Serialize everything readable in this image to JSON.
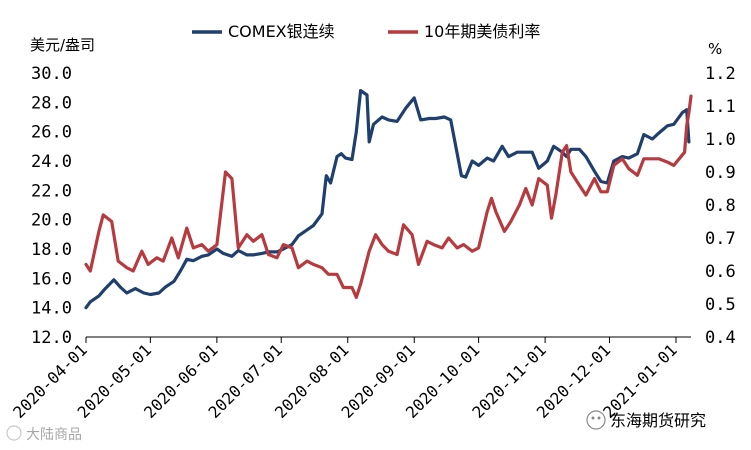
{
  "chart_data": {
    "type": "line",
    "left_axis_unit": "美元/盎司",
    "right_axis_unit": "%",
    "left_axis": {
      "range": [
        12.0,
        30.0
      ],
      "ticks": [
        "12.0",
        "14.0",
        "16.0",
        "18.0",
        "20.0",
        "22.0",
        "24.0",
        "26.0",
        "28.0",
        "30.0"
      ]
    },
    "right_axis": {
      "range": [
        0.4,
        1.2
      ],
      "ticks": [
        "0.4",
        "0.5",
        "0.6",
        "0.7",
        "0.8",
        "0.9",
        "1.0",
        "1.1",
        "1.2"
      ]
    },
    "x_axis": {
      "range": [
        "2020-04-01",
        "2021-01-08"
      ],
      "tick_labels": [
        "2020-04-01",
        "2020-05-01",
        "2020-06-01",
        "2020-07-01",
        "2020-08-01",
        "2020-09-01",
        "2020-10-01",
        "2020-11-01",
        "2020-12-01",
        "2021-01-01"
      ]
    },
    "grid": false,
    "legend_position": "top-center",
    "series": [
      {
        "name": "COMEX银连续",
        "axis": "left",
        "color": "#1f3f6e",
        "points": [
          [
            "2020-04-01",
            14.0
          ],
          [
            "2020-04-03",
            14.4
          ],
          [
            "2020-04-07",
            14.8
          ],
          [
            "2020-04-10",
            15.3
          ],
          [
            "2020-04-14",
            15.9
          ],
          [
            "2020-04-17",
            15.4
          ],
          [
            "2020-04-20",
            15.0
          ],
          [
            "2020-04-24",
            15.3
          ],
          [
            "2020-04-28",
            15.0
          ],
          [
            "2020-05-01",
            14.9
          ],
          [
            "2020-05-05",
            15.0
          ],
          [
            "2020-05-08",
            15.4
          ],
          [
            "2020-05-12",
            15.8
          ],
          [
            "2020-05-15",
            16.5
          ],
          [
            "2020-05-18",
            17.3
          ],
          [
            "2020-05-21",
            17.2
          ],
          [
            "2020-05-25",
            17.5
          ],
          [
            "2020-05-28",
            17.6
          ],
          [
            "2020-06-01",
            18.0
          ],
          [
            "2020-06-04",
            17.7
          ],
          [
            "2020-06-08",
            17.5
          ],
          [
            "2020-06-11",
            17.9
          ],
          [
            "2020-06-15",
            17.6
          ],
          [
            "2020-06-18",
            17.6
          ],
          [
            "2020-06-22",
            17.7
          ],
          [
            "2020-06-25",
            17.8
          ],
          [
            "2020-06-29",
            17.8
          ],
          [
            "2020-07-02",
            18.0
          ],
          [
            "2020-07-06",
            18.3
          ],
          [
            "2020-07-09",
            18.9
          ],
          [
            "2020-07-13",
            19.3
          ],
          [
            "2020-07-16",
            19.6
          ],
          [
            "2020-07-20",
            20.4
          ],
          [
            "2020-07-22",
            23.0
          ],
          [
            "2020-07-24",
            22.5
          ],
          [
            "2020-07-27",
            24.3
          ],
          [
            "2020-07-29",
            24.5
          ],
          [
            "2020-07-31",
            24.2
          ],
          [
            "2020-08-03",
            24.1
          ],
          [
            "2020-08-05",
            26.0
          ],
          [
            "2020-08-07",
            28.8
          ],
          [
            "2020-08-10",
            28.5
          ],
          [
            "2020-08-11",
            25.3
          ],
          [
            "2020-08-13",
            26.5
          ],
          [
            "2020-08-17",
            27.0
          ],
          [
            "2020-08-20",
            26.8
          ],
          [
            "2020-08-24",
            26.7
          ],
          [
            "2020-08-28",
            27.6
          ],
          [
            "2020-09-01",
            28.3
          ],
          [
            "2020-09-04",
            26.8
          ],
          [
            "2020-09-08",
            26.9
          ],
          [
            "2020-09-11",
            26.9
          ],
          [
            "2020-09-15",
            27.0
          ],
          [
            "2020-09-18",
            26.8
          ],
          [
            "2020-09-21",
            24.5
          ],
          [
            "2020-09-23",
            23.0
          ],
          [
            "2020-09-25",
            22.9
          ],
          [
            "2020-09-28",
            24.0
          ],
          [
            "2020-10-01",
            23.7
          ],
          [
            "2020-10-05",
            24.2
          ],
          [
            "2020-10-08",
            24.0
          ],
          [
            "2020-10-12",
            25.0
          ],
          [
            "2020-10-15",
            24.3
          ],
          [
            "2020-10-19",
            24.6
          ],
          [
            "2020-10-22",
            24.6
          ],
          [
            "2020-10-26",
            24.6
          ],
          [
            "2020-10-29",
            23.5
          ],
          [
            "2020-11-02",
            24.0
          ],
          [
            "2020-11-05",
            25.0
          ],
          [
            "2020-11-09",
            24.6
          ],
          [
            "2020-11-11",
            24.3
          ],
          [
            "2020-11-13",
            24.8
          ],
          [
            "2020-11-17",
            24.8
          ],
          [
            "2020-11-20",
            24.3
          ],
          [
            "2020-11-24",
            23.3
          ],
          [
            "2020-11-27",
            22.6
          ],
          [
            "2020-11-30",
            22.5
          ],
          [
            "2020-12-03",
            24.0
          ],
          [
            "2020-12-07",
            24.3
          ],
          [
            "2020-12-10",
            24.2
          ],
          [
            "2020-12-14",
            24.5
          ],
          [
            "2020-12-17",
            25.8
          ],
          [
            "2020-12-21",
            25.5
          ],
          [
            "2020-12-24",
            25.9
          ],
          [
            "2020-12-28",
            26.4
          ],
          [
            "2020-12-31",
            26.5
          ],
          [
            "2021-01-04",
            27.3
          ],
          [
            "2021-01-06",
            27.5
          ],
          [
            "2021-01-07",
            25.3
          ]
        ]
      },
      {
        "name": "10年期美债利率",
        "axis": "right",
        "color": "#b73a3f",
        "points": [
          [
            "2020-04-01",
            0.62
          ],
          [
            "2020-04-03",
            0.6
          ],
          [
            "2020-04-07",
            0.72
          ],
          [
            "2020-04-09",
            0.77
          ],
          [
            "2020-04-13",
            0.75
          ],
          [
            "2020-04-16",
            0.63
          ],
          [
            "2020-04-20",
            0.61
          ],
          [
            "2020-04-23",
            0.6
          ],
          [
            "2020-04-27",
            0.66
          ],
          [
            "2020-04-30",
            0.62
          ],
          [
            "2020-05-04",
            0.64
          ],
          [
            "2020-05-07",
            0.63
          ],
          [
            "2020-05-11",
            0.7
          ],
          [
            "2020-05-14",
            0.64
          ],
          [
            "2020-05-18",
            0.73
          ],
          [
            "2020-05-21",
            0.67
          ],
          [
            "2020-05-25",
            0.68
          ],
          [
            "2020-05-28",
            0.66
          ],
          [
            "2020-06-01",
            0.68
          ],
          [
            "2020-06-05",
            0.9
          ],
          [
            "2020-06-08",
            0.88
          ],
          [
            "2020-06-11",
            0.67
          ],
          [
            "2020-06-15",
            0.71
          ],
          [
            "2020-06-18",
            0.69
          ],
          [
            "2020-06-22",
            0.71
          ],
          [
            "2020-06-25",
            0.65
          ],
          [
            "2020-06-29",
            0.64
          ],
          [
            "2020-07-02",
            0.68
          ],
          [
            "2020-07-06",
            0.67
          ],
          [
            "2020-07-09",
            0.61
          ],
          [
            "2020-07-13",
            0.63
          ],
          [
            "2020-07-16",
            0.62
          ],
          [
            "2020-07-20",
            0.61
          ],
          [
            "2020-07-23",
            0.59
          ],
          [
            "2020-07-27",
            0.59
          ],
          [
            "2020-07-30",
            0.55
          ],
          [
            "2020-08-03",
            0.55
          ],
          [
            "2020-08-05",
            0.52
          ],
          [
            "2020-08-07",
            0.56
          ],
          [
            "2020-08-11",
            0.66
          ],
          [
            "2020-08-14",
            0.71
          ],
          [
            "2020-08-17",
            0.68
          ],
          [
            "2020-08-20",
            0.66
          ],
          [
            "2020-08-24",
            0.65
          ],
          [
            "2020-08-27",
            0.74
          ],
          [
            "2020-08-31",
            0.71
          ],
          [
            "2020-09-03",
            0.62
          ],
          [
            "2020-09-07",
            0.69
          ],
          [
            "2020-09-10",
            0.68
          ],
          [
            "2020-09-14",
            0.67
          ],
          [
            "2020-09-17",
            0.7
          ],
          [
            "2020-09-21",
            0.67
          ],
          [
            "2020-09-24",
            0.68
          ],
          [
            "2020-09-28",
            0.66
          ],
          [
            "2020-10-01",
            0.67
          ],
          [
            "2020-10-05",
            0.78
          ],
          [
            "2020-10-07",
            0.82
          ],
          [
            "2020-10-09",
            0.78
          ],
          [
            "2020-10-13",
            0.72
          ],
          [
            "2020-10-16",
            0.75
          ],
          [
            "2020-10-20",
            0.8
          ],
          [
            "2020-10-23",
            0.85
          ],
          [
            "2020-10-26",
            0.8
          ],
          [
            "2020-10-29",
            0.88
          ],
          [
            "2020-11-02",
            0.86
          ],
          [
            "2020-11-04",
            0.76
          ],
          [
            "2020-11-06",
            0.83
          ],
          [
            "2020-11-09",
            0.96
          ],
          [
            "2020-11-11",
            0.98
          ],
          [
            "2020-11-13",
            0.9
          ],
          [
            "2020-11-17",
            0.86
          ],
          [
            "2020-11-20",
            0.83
          ],
          [
            "2020-11-24",
            0.88
          ],
          [
            "2020-11-27",
            0.84
          ],
          [
            "2020-11-30",
            0.84
          ],
          [
            "2020-12-03",
            0.92
          ],
          [
            "2020-12-07",
            0.94
          ],
          [
            "2020-12-10",
            0.91
          ],
          [
            "2020-12-14",
            0.89
          ],
          [
            "2020-12-17",
            0.94
          ],
          [
            "2020-12-21",
            0.94
          ],
          [
            "2020-12-24",
            0.94
          ],
          [
            "2020-12-28",
            0.93
          ],
          [
            "2020-12-31",
            0.92
          ],
          [
            "2021-01-05",
            0.96
          ],
          [
            "2021-01-06",
            1.04
          ],
          [
            "2021-01-07",
            1.08
          ],
          [
            "2021-01-08",
            1.13
          ]
        ]
      }
    ]
  },
  "watermarks": {
    "bottom_left": "大陆商品",
    "bottom_right": "东海期货研究"
  }
}
